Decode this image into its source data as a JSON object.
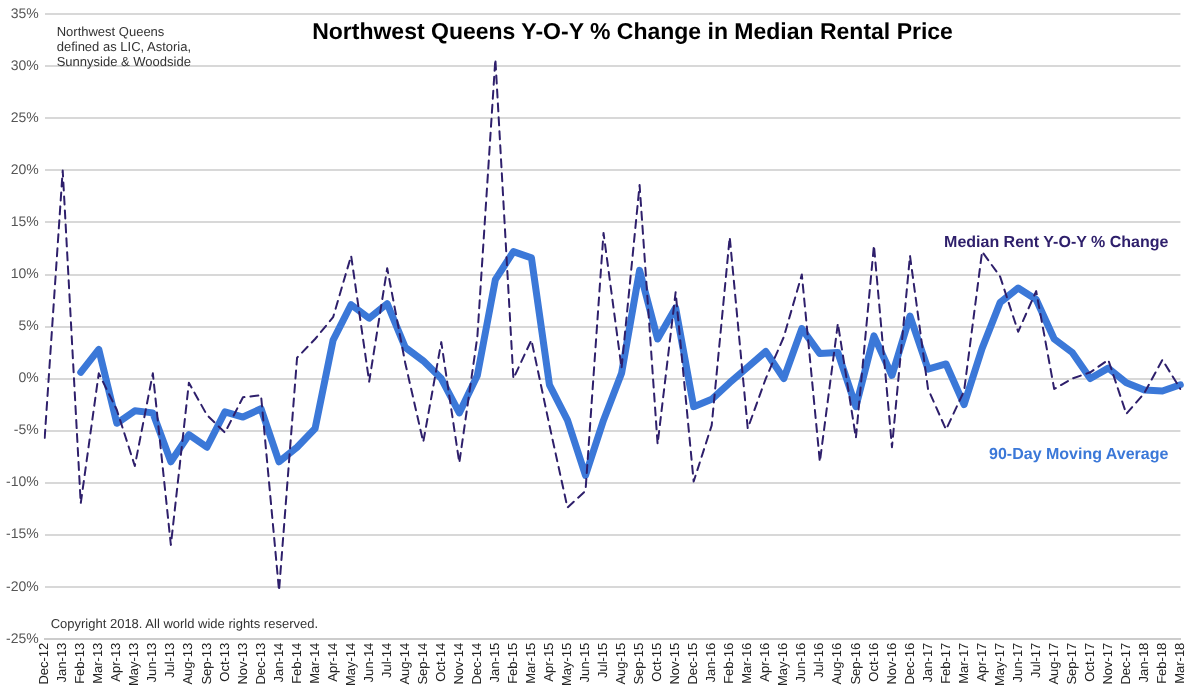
{
  "chart_data": {
    "type": "line",
    "title": "Northwest Queens Y-O-Y % Change in Median Rental Price",
    "categories": [
      "Dec-12",
      "Jan-13",
      "Feb-13",
      "Mar-13",
      "Apr-13",
      "May-13",
      "Jun-13",
      "Jul-13",
      "Aug-13",
      "Sep-13",
      "Oct-13",
      "Nov-13",
      "Dec-13",
      "Jan-14",
      "Feb-14",
      "Mar-14",
      "Apr-14",
      "May-14",
      "Jun-14",
      "Jul-14",
      "Aug-14",
      "Sep-14",
      "Oct-14",
      "Nov-14",
      "Dec-14",
      "Jan-15",
      "Feb-15",
      "Mar-15",
      "Apr-15",
      "May-15",
      "Jun-15",
      "Jul-15",
      "Aug-15",
      "Sep-15",
      "Oct-15",
      "Nov-15",
      "Dec-15",
      "Jan-16",
      "Feb-16",
      "Mar-16",
      "Apr-16",
      "May-16",
      "Jun-16",
      "Jul-16",
      "Aug-16",
      "Sep-16",
      "Oct-16",
      "Nov-16",
      "Dec-16",
      "Jan-17",
      "Feb-17",
      "Mar-17",
      "Apr-17",
      "May-17",
      "Jun-17",
      "Jul-17",
      "Aug-17",
      "Sep-17",
      "Oct-17",
      "Nov-17",
      "Dec-17",
      "Jan-18",
      "Feb-18",
      "Mar-18"
    ],
    "series": [
      {
        "name": "Median Rent Y-O-Y % Change",
        "color": "#2e1f6b",
        "line_style": "dashed",
        "values": [
          -5.7,
          20,
          -12,
          0.5,
          -3,
          -8.4,
          0.5,
          -16,
          -0.4,
          -3.5,
          -5.2,
          -1.8,
          -1.6,
          -20.4,
          2,
          3.8,
          5.9,
          11.8,
          -0.3,
          10.6,
          1.5,
          -6.1,
          3.5,
          -8.1,
          4,
          30.7,
          0,
          3.7,
          -4.5,
          -12.4,
          -10.8,
          14,
          1,
          18.6,
          -6.3,
          8.3,
          -9.9,
          -4.5,
          13.6,
          -4.8,
          0,
          4,
          10,
          -8,
          5.3,
          -5.7,
          12.8,
          -6.6,
          11.8,
          -1,
          -4.9,
          -1.2,
          12.2,
          9.8,
          4.5,
          8.4,
          -1,
          0,
          0.6,
          1.8,
          -3.4,
          -1.4,
          1.8,
          -1
        ]
      },
      {
        "name": "90-Day Moving Average",
        "color": "#3b78d8",
        "line_style": "solid",
        "values": [
          null,
          null,
          0.6,
          2.8,
          -4.3,
          -3.1,
          -3.3,
          -8,
          -5.4,
          -6.6,
          -3.2,
          -3.7,
          -2.9,
          -8,
          -6.6,
          -4.8,
          3.7,
          7.1,
          5.8,
          7.2,
          3,
          1.7,
          0,
          -3.3,
          0.3,
          9.5,
          12.2,
          11.6,
          -0.6,
          -4,
          -9.3,
          -4,
          0.5,
          10.4,
          3.8,
          6.8,
          -2.7,
          -2,
          -0.4,
          1.1,
          2.6,
          0,
          4.8,
          2.4,
          2.5,
          -2.7,
          4.1,
          0.3,
          6,
          0.9,
          1.4,
          -2.5,
          2.9,
          7.3,
          8.7,
          7.6,
          3.8,
          2.5,
          0,
          1,
          -0.4,
          -1.1,
          -1.2,
          -0.6
        ]
      }
    ],
    "ylim": [
      -25,
      35
    ],
    "yticks": [
      {
        "value": -25,
        "label": "-25%"
      },
      {
        "value": -20,
        "label": "-20%"
      },
      {
        "value": -15,
        "label": "-15%"
      },
      {
        "value": -10,
        "label": "-10%"
      },
      {
        "value": -5,
        "label": "-5%"
      },
      {
        "value": 0,
        "label": "0%"
      },
      {
        "value": 5,
        "label": "5%"
      },
      {
        "value": 10,
        "label": "10%"
      },
      {
        "value": 15,
        "label": "15%"
      },
      {
        "value": 20,
        "label": "20%"
      },
      {
        "value": 25,
        "label": "25%"
      },
      {
        "value": 30,
        "label": "30%"
      },
      {
        "value": 35,
        "label": "35%"
      }
    ],
    "grid": "y",
    "marker": "none",
    "annotations": [
      "Northwest Queens\ndefined as LIC, Astoria,\nSunnyside & Woodside",
      "Copyright 2018. All world wide rights reserved."
    ]
  }
}
